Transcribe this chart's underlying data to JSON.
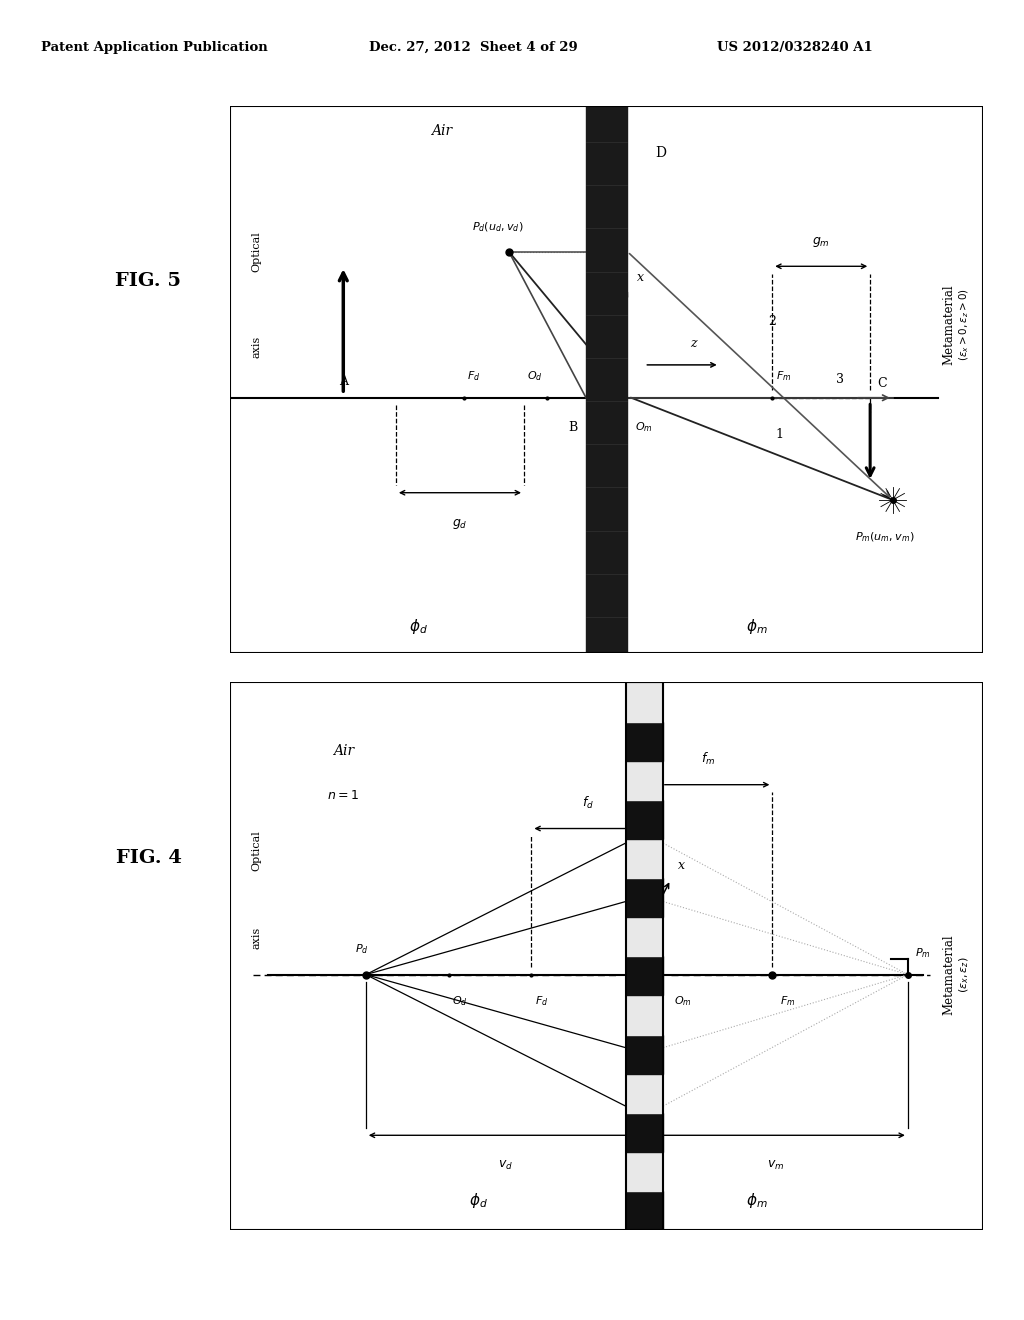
{
  "bg_color": "#ffffff",
  "header_text": "Patent Application Publication",
  "header_date": "Dec. 27, 2012  Sheet 4 of 29",
  "header_patent": "US 2012/0328240 A1",
  "fig4_label": "FIG. 4",
  "fig5_label": "FIG. 5"
}
